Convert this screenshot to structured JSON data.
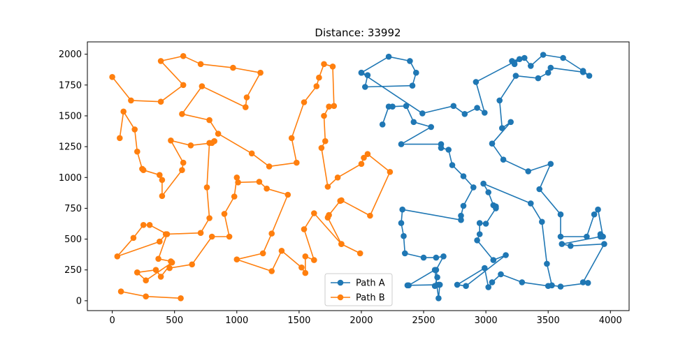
{
  "chart_data": {
    "type": "line",
    "title": "Distance: 33992",
    "xlabel": "",
    "ylabel": "",
    "xlim": [
      -200,
      4150
    ],
    "ylim": [
      -80,
      2100
    ],
    "xticks": [
      0,
      500,
      1000,
      1500,
      2000,
      2500,
      3000,
      3500,
      4000
    ],
    "yticks": [
      0,
      250,
      500,
      750,
      1000,
      1250,
      1500,
      1750,
      2000
    ],
    "grid": false,
    "legend_position": "bottom-center",
    "series": [
      {
        "name": "Path A",
        "color": "#1f77b4",
        "marker": "circle",
        "points": [
          [
            2000,
            1850
          ],
          [
            2050,
            1830
          ],
          [
            2030,
            1735
          ],
          [
            2410,
            1745
          ],
          [
            2440,
            1850
          ],
          [
            2390,
            1945
          ],
          [
            2220,
            1980
          ],
          [
            2000,
            1850
          ],
          [
            2490,
            1520
          ],
          [
            2740,
            1580
          ],
          [
            2830,
            1515
          ],
          [
            2930,
            1565
          ],
          [
            2990,
            1525
          ],
          [
            2920,
            1775
          ],
          [
            3270,
            1960
          ],
          [
            3230,
            1920
          ],
          [
            3210,
            1945
          ],
          [
            3310,
            1970
          ],
          [
            3360,
            1905
          ],
          [
            3460,
            1995
          ],
          [
            3620,
            1970
          ],
          [
            3780,
            1865
          ],
          [
            3830,
            1825
          ],
          [
            3780,
            1855
          ],
          [
            3520,
            1890
          ],
          [
            3500,
            1850
          ],
          [
            3420,
            1805
          ],
          [
            3240,
            1825
          ],
          [
            3110,
            1625
          ],
          [
            3130,
            1400
          ],
          [
            3200,
            1450
          ],
          [
            3050,
            1275
          ],
          [
            3140,
            1145
          ],
          [
            3340,
            1050
          ],
          [
            3520,
            1110
          ],
          [
            3430,
            905
          ],
          [
            3600,
            700
          ],
          [
            3600,
            520
          ],
          [
            3810,
            520
          ],
          [
            3870,
            700
          ],
          [
            3900,
            740
          ],
          [
            3940,
            520
          ],
          [
            3920,
            540
          ],
          [
            3920,
            520
          ],
          [
            3610,
            460
          ],
          [
            3680,
            445
          ],
          [
            3950,
            460
          ],
          [
            3780,
            150
          ],
          [
            3820,
            145
          ],
          [
            3600,
            115
          ],
          [
            3530,
            125
          ],
          [
            3490,
            300
          ],
          [
            3450,
            640
          ],
          [
            3360,
            790
          ],
          [
            2980,
            950
          ],
          [
            3020,
            880
          ],
          [
            3060,
            775
          ],
          [
            3080,
            765
          ],
          [
            3080,
            750
          ],
          [
            3000,
            625
          ],
          [
            2950,
            630
          ],
          [
            2950,
            540
          ],
          [
            2930,
            490
          ],
          [
            3060,
            330
          ],
          [
            3160,
            370
          ],
          [
            2840,
            120
          ],
          [
            2770,
            130
          ],
          [
            2990,
            265
          ],
          [
            3020,
            110
          ],
          [
            3050,
            150
          ],
          [
            3120,
            215
          ],
          [
            3290,
            150
          ],
          [
            3500,
            120
          ]
        ]
      },
      {
        "name": "Path A (loop 2)",
        "color": "#1f77b4",
        "marker": "circle",
        "legend": false,
        "points": [
          [
            2170,
            1430
          ],
          [
            2220,
            1575
          ],
          [
            2250,
            1575
          ],
          [
            2360,
            1580
          ],
          [
            2420,
            1450
          ],
          [
            2560,
            1410
          ],
          [
            2320,
            1270
          ],
          [
            2640,
            1270
          ],
          [
            2640,
            1240
          ],
          [
            2700,
            1225
          ],
          [
            2730,
            1100
          ],
          [
            2820,
            1010
          ],
          [
            2900,
            920
          ],
          [
            2820,
            770
          ],
          [
            2800,
            690
          ],
          [
            2800,
            655
          ],
          [
            2330,
            740
          ],
          [
            2320,
            630
          ],
          [
            2340,
            525
          ],
          [
            2350,
            385
          ],
          [
            2500,
            350
          ],
          [
            2600,
            350
          ],
          [
            2660,
            360
          ],
          [
            2600,
            250
          ],
          [
            2610,
            190
          ],
          [
            2590,
            120
          ],
          [
            2630,
            130
          ],
          [
            2620,
            20
          ],
          [
            2590,
            250
          ],
          [
            2380,
            125
          ],
          [
            2370,
            125
          ],
          [
            2620,
            130
          ]
        ]
      },
      {
        "name": "Path B",
        "color": "#ff7f0e",
        "marker": "circle",
        "points": [
          [
            0,
            1815
          ],
          [
            150,
            1625
          ],
          [
            390,
            1615
          ],
          [
            570,
            1750
          ],
          [
            390,
            1945
          ],
          [
            570,
            1985
          ],
          [
            710,
            1920
          ],
          [
            970,
            1890
          ],
          [
            1190,
            1850
          ],
          [
            1080,
            1650
          ],
          [
            1070,
            1570
          ],
          [
            720,
            1740
          ],
          [
            560,
            1515
          ],
          [
            780,
            1465
          ],
          [
            850,
            1355
          ],
          [
            1120,
            1195
          ],
          [
            1260,
            1090
          ],
          [
            1480,
            1120
          ],
          [
            1440,
            1320
          ],
          [
            1540,
            1610
          ],
          [
            1640,
            1740
          ],
          [
            1660,
            1810
          ],
          [
            1700,
            1920
          ],
          [
            1770,
            1900
          ],
          [
            1780,
            1580
          ],
          [
            1740,
            1575
          ],
          [
            1700,
            1500
          ],
          [
            1710,
            1295
          ],
          [
            1680,
            1240
          ],
          [
            1730,
            925
          ],
          [
            1810,
            1000
          ],
          [
            2000,
            1110
          ],
          [
            2020,
            1160
          ],
          [
            2050,
            1190
          ],
          [
            2230,
            1045
          ],
          [
            2070,
            690
          ],
          [
            1840,
            815
          ],
          [
            1830,
            810
          ],
          [
            1740,
            695
          ],
          [
            1730,
            675
          ],
          [
            1840,
            460
          ],
          [
            1990,
            385
          ]
        ]
      },
      {
        "name": "Path B (loop 2)",
        "color": "#ff7f0e",
        "marker": "circle",
        "legend": false,
        "points": [
          [
            60,
            1320
          ],
          [
            90,
            1535
          ],
          [
            180,
            1390
          ],
          [
            200,
            1210
          ],
          [
            240,
            1070
          ],
          [
            250,
            1060
          ],
          [
            380,
            1020
          ],
          [
            400,
            980
          ],
          [
            400,
            850
          ],
          [
            560,
            1060
          ],
          [
            570,
            1120
          ],
          [
            470,
            1300
          ],
          [
            630,
            1260
          ],
          [
            800,
            1280
          ],
          [
            820,
            1295
          ],
          [
            780,
            1280
          ],
          [
            760,
            920
          ],
          [
            780,
            670
          ],
          [
            710,
            550
          ],
          [
            430,
            540
          ],
          [
            380,
            480
          ],
          [
            40,
            360
          ],
          [
            170,
            510
          ],
          [
            250,
            615
          ],
          [
            300,
            615
          ],
          [
            440,
            540
          ],
          [
            370,
            340
          ],
          [
            470,
            320
          ],
          [
            460,
            265
          ],
          [
            640,
            295
          ],
          [
            800,
            520
          ],
          [
            940,
            520
          ],
          [
            900,
            705
          ],
          [
            980,
            845
          ],
          [
            1000,
            1000
          ],
          [
            1010,
            960
          ],
          [
            1180,
            965
          ],
          [
            1240,
            910
          ],
          [
            1410,
            860
          ],
          [
            1280,
            545
          ],
          [
            1210,
            385
          ],
          [
            1000,
            335
          ],
          [
            1280,
            240
          ],
          [
            1360,
            405
          ],
          [
            1520,
            270
          ],
          [
            1550,
            225
          ],
          [
            1550,
            360
          ],
          [
            1620,
            330
          ],
          [
            1540,
            580
          ],
          [
            1620,
            710
          ],
          [
            1840,
            460
          ]
        ]
      },
      {
        "name": "Path B (loop 3)",
        "color": "#ff7f0e",
        "marker": "circle",
        "legend": false,
        "points": [
          [
            200,
            230
          ],
          [
            350,
            250
          ],
          [
            390,
            195
          ],
          [
            480,
            310
          ],
          [
            270,
            165
          ],
          [
            200,
            230
          ]
        ]
      },
      {
        "name": "Path B (loop 4)",
        "color": "#ff7f0e",
        "marker": "circle",
        "legend": false,
        "points": [
          [
            70,
            75
          ],
          [
            270,
            35
          ],
          [
            550,
            20
          ]
        ]
      }
    ],
    "legend_entries": [
      "Path A",
      "Path B"
    ]
  }
}
